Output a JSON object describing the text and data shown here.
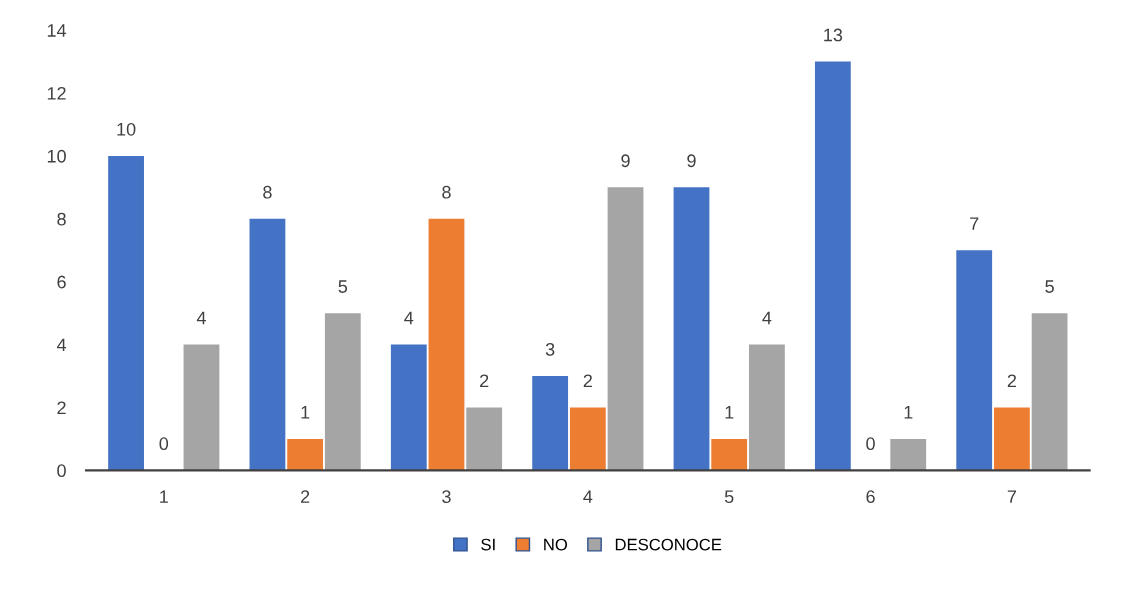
{
  "chart_data": {
    "type": "bar",
    "categories": [
      "1",
      "2",
      "3",
      "4",
      "5",
      "6",
      "7"
    ],
    "series": [
      {
        "name": "SI",
        "color": "#4472c4",
        "values": [
          10,
          8,
          4,
          3,
          9,
          13,
          7
        ]
      },
      {
        "name": "NO",
        "color": "#ed7d31",
        "values": [
          0,
          1,
          8,
          2,
          1,
          0,
          2
        ]
      },
      {
        "name": "DESCONOCE",
        "color": "#a5a5a5",
        "values": [
          4,
          5,
          2,
          9,
          4,
          1,
          5
        ]
      }
    ],
    "ylim": [
      0,
      14
    ],
    "yticks": [
      0,
      2,
      4,
      6,
      8,
      10,
      12,
      14
    ],
    "grid": false,
    "legend": "bottom",
    "data_labels": true
  }
}
